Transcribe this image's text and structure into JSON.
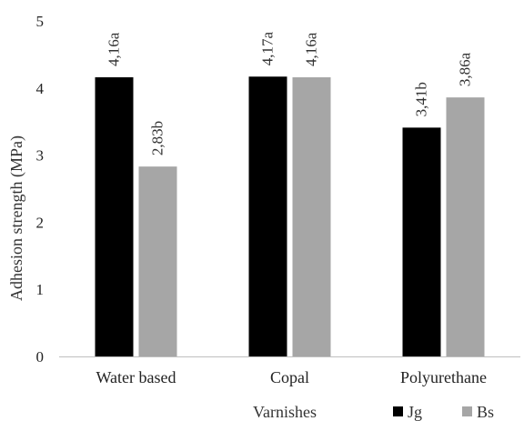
{
  "chart_data": {
    "type": "bar",
    "title": "",
    "xlabel": "Varnishes",
    "ylabel": "Adhesion strength (MPa)",
    "ylim": [
      0,
      5
    ],
    "yticks": [
      0,
      1,
      2,
      3,
      4,
      5
    ],
    "grid": false,
    "legend_position": "bottom-right",
    "categories": [
      "Water based",
      "Copal",
      "Polyurethane"
    ],
    "series": [
      {
        "name": "Jg",
        "color": "#000000",
        "values": [
          4.16,
          4.17,
          3.41
        ],
        "labels": [
          "4,16a",
          "4,17a",
          "3,41b"
        ]
      },
      {
        "name": "Bs",
        "color": "#a6a6a6",
        "values": [
          2.83,
          4.16,
          3.86
        ],
        "labels": [
          "2,83b",
          "4,16a",
          "3,86a"
        ]
      }
    ]
  }
}
